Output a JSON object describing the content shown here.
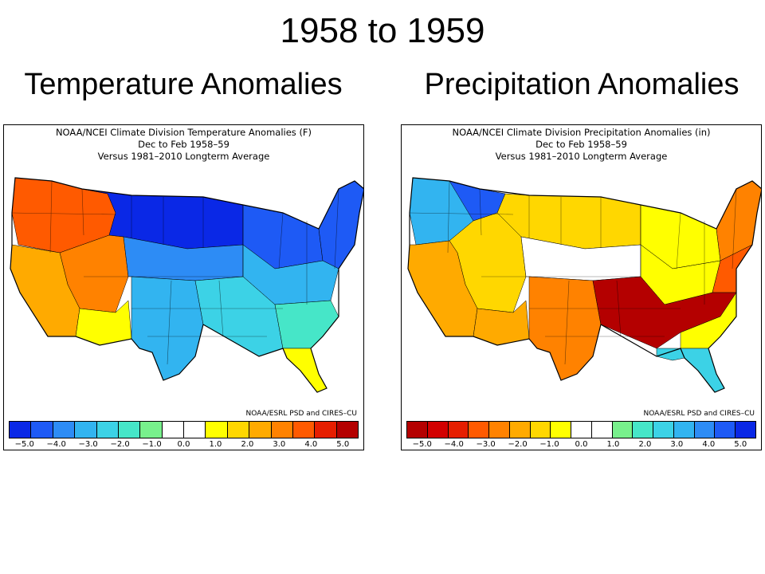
{
  "slide": {
    "title": "1958 to 1959",
    "left_subtitle": "Temperature Anomalies",
    "right_subtitle": "Precipitation Anomalies"
  },
  "temperature_map": {
    "header": [
      "NOAA/NCEI Climate Division Temperature Anomalies (F)",
      "Dec to Feb 1958–59",
      "Versus 1981–2010 Longterm Average"
    ],
    "credit": "NOAA/ESRL PSD and CIRES–CU",
    "colorbar": {
      "colors": [
        "#0a28e6",
        "#1e5af5",
        "#2d8cf5",
        "#32b4f0",
        "#3cd2e6",
        "#46e6c8",
        "#78f08c",
        "#ffffff",
        "#ffffff",
        "#ffff00",
        "#ffd700",
        "#ffaa00",
        "#ff8200",
        "#ff5a00",
        "#e61e00",
        "#b40000"
      ],
      "ticks": [
        "−5.0",
        "−4.0",
        "−3.0",
        "−2.0",
        "−1.0",
        "0.0",
        "1.0",
        "2.0",
        "3.0",
        "4.0",
        "5.0"
      ]
    },
    "regions": [
      {
        "id": "pacific-northwest",
        "color": "#ff5a00"
      },
      {
        "id": "great-basin",
        "color": "#ff8200"
      },
      {
        "id": "california",
        "color": "#ffaa00"
      },
      {
        "id": "southwest",
        "color": "#ffff00"
      },
      {
        "id": "northern-plains",
        "color": "#0a28e6"
      },
      {
        "id": "great-lakes",
        "color": "#1e5af5"
      },
      {
        "id": "northeast",
        "color": "#1e5af5"
      },
      {
        "id": "central-plains",
        "color": "#2d8cf5"
      },
      {
        "id": "midwest",
        "color": "#32b4f0"
      },
      {
        "id": "south",
        "color": "#3cd2e6"
      },
      {
        "id": "southeast",
        "color": "#46e6c8"
      },
      {
        "id": "texas",
        "color": "#32b4f0"
      },
      {
        "id": "florida",
        "color": "#ffff00"
      }
    ]
  },
  "precipitation_map": {
    "header": [
      "NOAA/NCEI Climate Division Precipitation Anomalies (in)",
      "Dec to Feb 1958–59",
      "Versus 1981–2010 Longterm Average"
    ],
    "credit": "NOAA/ESRL PSD and CIRES–CU",
    "colorbar": {
      "colors": [
        "#b40000",
        "#d20000",
        "#e61e00",
        "#ff5a00",
        "#ff8200",
        "#ffaa00",
        "#ffd700",
        "#ffff00",
        "#ffffff",
        "#ffffff",
        "#78f08c",
        "#46e6c8",
        "#3cd2e6",
        "#32b4f0",
        "#2d8cf5",
        "#1e5af5",
        "#0a28e6"
      ],
      "ticks": [
        "−5.0",
        "−4.0",
        "−3.0",
        "−2.0",
        "−1.0",
        "0.0",
        "1.0",
        "2.0",
        "3.0",
        "4.0",
        "5.0"
      ]
    },
    "regions": [
      {
        "id": "pacific-northwest",
        "color": "#32b4f0"
      },
      {
        "id": "northern-rockies",
        "color": "#1e5af5"
      },
      {
        "id": "great-basin",
        "color": "#ffd700"
      },
      {
        "id": "california",
        "color": "#ffaa00"
      },
      {
        "id": "southwest",
        "color": "#ffaa00"
      },
      {
        "id": "northern-plains",
        "color": "#ffd700"
      },
      {
        "id": "central-plains",
        "color": "#ffffff"
      },
      {
        "id": "midwest",
        "color": "#ffff00"
      },
      {
        "id": "great-lakes",
        "color": "#ffff00"
      },
      {
        "id": "northeast",
        "color": "#ff8200"
      },
      {
        "id": "mid-atlantic",
        "color": "#ff5a00"
      },
      {
        "id": "south",
        "color": "#b40000"
      },
      {
        "id": "southeast",
        "color": "#ffff00"
      },
      {
        "id": "texas",
        "color": "#ff8200"
      },
      {
        "id": "florida",
        "color": "#3cd2e6"
      }
    ]
  }
}
